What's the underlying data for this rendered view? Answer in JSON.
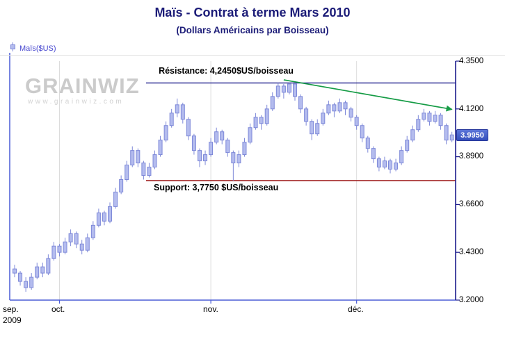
{
  "watermark": {
    "logo": "GRAINWIZ",
    "url": "www.grainwiz.com"
  },
  "colors": {
    "title_navy": "#1c1c78",
    "axis_blue": "#4a5cd6",
    "candle_fill": "#b4bcee",
    "candle_stroke": "#7d88d8",
    "resistance": "#1c1c8c",
    "support": "#9a1212",
    "trendline": "#169c46",
    "badge_bg": "#3d5ac8",
    "gridline": "#dcdcdc"
  },
  "chart_data": {
    "type": "candlestick",
    "title": "Maïs - Contrat à terme Mars 2010",
    "subtitle": "(Dollars Américains par Boisseau)",
    "legend": "Maïs($US)",
    "ylim": [
      3.2,
      4.35
    ],
    "y_ticks": [
      {
        "value": 4.35,
        "label": "4.3500"
      },
      {
        "value": 4.12,
        "label": "4.1200"
      },
      {
        "value": 3.89,
        "label": "3.8900"
      },
      {
        "value": 3.66,
        "label": "3.6600"
      },
      {
        "value": 3.43,
        "label": "3.4300"
      },
      {
        "value": 3.2,
        "label": "3.2000"
      }
    ],
    "last_price": {
      "value": 3.995,
      "label": "3.9950"
    },
    "x_labels": [
      {
        "label": "sep.",
        "sub": "2009",
        "index": 0
      },
      {
        "label": "oct.",
        "index": 8
      },
      {
        "label": "nov.",
        "index": 35
      },
      {
        "label": "déc.",
        "index": 61
      }
    ],
    "resistance": {
      "value": 4.245,
      "label": "Résistance: 4,2450$US/boisseau"
    },
    "support": {
      "value": 3.775,
      "label": "Support: 3,7750 $US/boisseau"
    },
    "trendline": {
      "start_index": 48,
      "start_value": 4.26,
      "end_index": 78,
      "end_value": 4.118
    },
    "series": [
      {
        "name": "Maïs($US)",
        "ohlc": [
          [
            3.35,
            3.37,
            3.31,
            3.33
          ],
          [
            3.33,
            3.34,
            3.27,
            3.29
          ],
          [
            3.29,
            3.31,
            3.24,
            3.26
          ],
          [
            3.26,
            3.33,
            3.25,
            3.31
          ],
          [
            3.31,
            3.38,
            3.3,
            3.36
          ],
          [
            3.36,
            3.38,
            3.31,
            3.33
          ],
          [
            3.33,
            3.42,
            3.32,
            3.4
          ],
          [
            3.4,
            3.48,
            3.39,
            3.46
          ],
          [
            3.46,
            3.47,
            3.41,
            3.43
          ],
          [
            3.43,
            3.5,
            3.42,
            3.48
          ],
          [
            3.48,
            3.54,
            3.46,
            3.52
          ],
          [
            3.52,
            3.53,
            3.45,
            3.47
          ],
          [
            3.47,
            3.49,
            3.42,
            3.44
          ],
          [
            3.44,
            3.52,
            3.43,
            3.5
          ],
          [
            3.5,
            3.58,
            3.49,
            3.56
          ],
          [
            3.56,
            3.64,
            3.55,
            3.62
          ],
          [
            3.62,
            3.63,
            3.56,
            3.58
          ],
          [
            3.58,
            3.67,
            3.57,
            3.65
          ],
          [
            3.65,
            3.74,
            3.64,
            3.72
          ],
          [
            3.72,
            3.8,
            3.71,
            3.78
          ],
          [
            3.78,
            3.87,
            3.77,
            3.85
          ],
          [
            3.85,
            3.94,
            3.84,
            3.92
          ],
          [
            3.92,
            3.93,
            3.84,
            3.86
          ],
          [
            3.86,
            3.87,
            3.78,
            3.8
          ],
          [
            3.8,
            3.86,
            3.79,
            3.84
          ],
          [
            3.84,
            3.92,
            3.83,
            3.9
          ],
          [
            3.9,
            3.99,
            3.89,
            3.97
          ],
          [
            3.97,
            4.06,
            3.96,
            4.04
          ],
          [
            4.04,
            4.12,
            4.03,
            4.1
          ],
          [
            4.1,
            4.17,
            4.08,
            4.14
          ],
          [
            4.14,
            4.15,
            4.05,
            4.07
          ],
          [
            4.07,
            4.08,
            3.97,
            3.99
          ],
          [
            3.99,
            4.0,
            3.9,
            3.92
          ],
          [
            3.92,
            3.93,
            3.84,
            3.87
          ],
          [
            3.87,
            3.92,
            3.85,
            3.9
          ],
          [
            3.9,
            3.98,
            3.89,
            3.96
          ],
          [
            3.96,
            4.03,
            3.95,
            4.01
          ],
          [
            4.01,
            4.02,
            3.95,
            3.97
          ],
          [
            3.97,
            3.98,
            3.89,
            3.91
          ],
          [
            3.91,
            3.92,
            3.775,
            3.86
          ],
          [
            3.86,
            3.92,
            3.84,
            3.9
          ],
          [
            3.9,
            3.98,
            3.89,
            3.96
          ],
          [
            3.96,
            4.05,
            3.95,
            4.03
          ],
          [
            4.03,
            4.1,
            4.02,
            4.08
          ],
          [
            4.08,
            4.09,
            4.02,
            4.05
          ],
          [
            4.05,
            4.14,
            4.04,
            4.12
          ],
          [
            4.12,
            4.2,
            4.11,
            4.18
          ],
          [
            4.18,
            4.245,
            4.17,
            4.23
          ],
          [
            4.23,
            4.24,
            4.17,
            4.2
          ],
          [
            4.2,
            4.245,
            4.19,
            4.24
          ],
          [
            4.24,
            4.24,
            4.16,
            4.18
          ],
          [
            4.18,
            4.19,
            4.1,
            4.12
          ],
          [
            4.12,
            4.13,
            4.04,
            4.06
          ],
          [
            4.06,
            4.07,
            3.97,
            4.0
          ],
          [
            4.0,
            4.07,
            3.99,
            4.05
          ],
          [
            4.05,
            4.12,
            4.04,
            4.1
          ],
          [
            4.1,
            4.16,
            4.09,
            4.14
          ],
          [
            4.14,
            4.15,
            4.08,
            4.11
          ],
          [
            4.11,
            4.17,
            4.1,
            4.15
          ],
          [
            4.15,
            4.16,
            4.09,
            4.12
          ],
          [
            4.12,
            4.13,
            4.06,
            4.08
          ],
          [
            4.08,
            4.09,
            4.02,
            4.04
          ],
          [
            4.04,
            4.05,
            3.96,
            3.98
          ],
          [
            3.98,
            3.99,
            3.91,
            3.93
          ],
          [
            3.93,
            3.94,
            3.86,
            3.88
          ],
          [
            3.88,
            3.89,
            3.82,
            3.84
          ],
          [
            3.84,
            3.89,
            3.83,
            3.87
          ],
          [
            3.87,
            3.88,
            3.81,
            3.83
          ],
          [
            3.83,
            3.88,
            3.82,
            3.86
          ],
          [
            3.86,
            3.94,
            3.85,
            3.92
          ],
          [
            3.92,
            3.99,
            3.91,
            3.97
          ],
          [
            3.97,
            4.04,
            3.96,
            4.02
          ],
          [
            4.02,
            4.09,
            4.01,
            4.07
          ],
          [
            4.07,
            4.12,
            4.06,
            4.1
          ],
          [
            4.1,
            4.11,
            4.04,
            4.06
          ],
          [
            4.06,
            4.11,
            4.05,
            4.09
          ],
          [
            4.09,
            4.1,
            4.02,
            4.04
          ],
          [
            4.04,
            4.05,
            3.95,
            3.97
          ],
          [
            3.97,
            4.01,
            3.96,
            3.995
          ]
        ]
      }
    ]
  }
}
